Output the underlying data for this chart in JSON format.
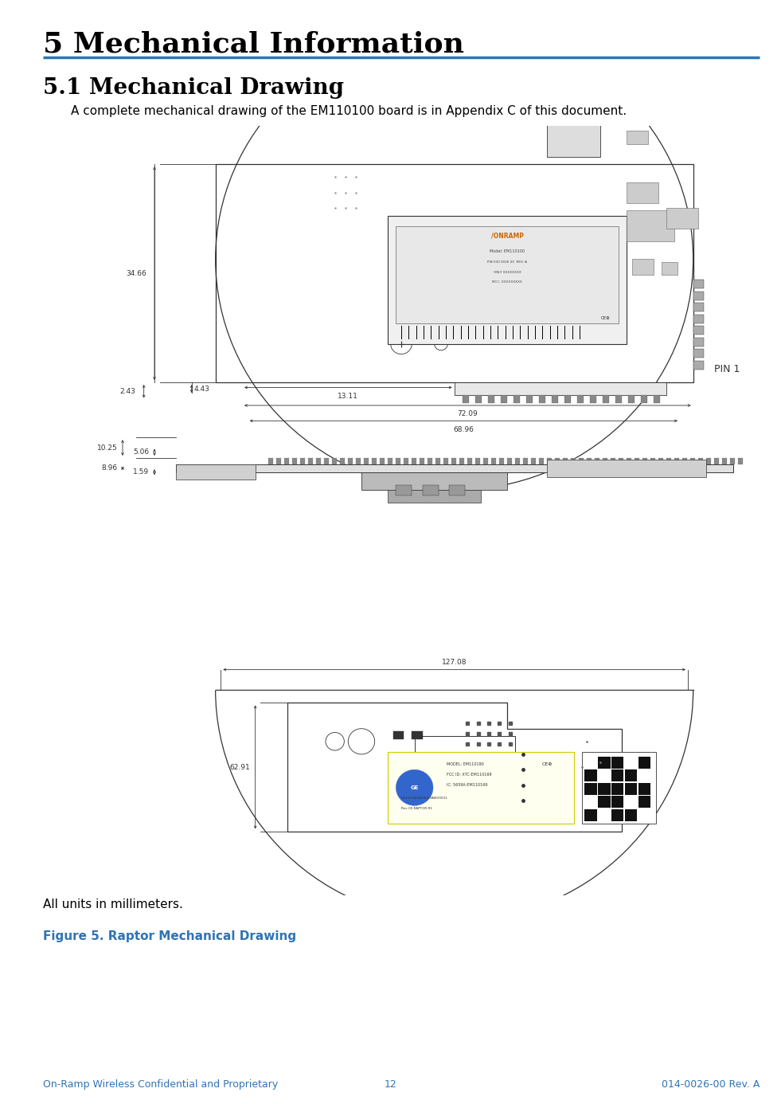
{
  "title": "5 Mechanical Information",
  "subtitle": "5.1 Mechanical Drawing",
  "body_text": "A complete mechanical drawing of the EM110100 board is in Appendix C of this document.",
  "caption_text": "All units in millimeters.",
  "figure_caption": "Figure 5. Raptor Mechanical Drawing",
  "footer_left": "On-Ramp Wireless Confidential and Proprietary",
  "footer_center": "12",
  "footer_right": "014-0026-00 Rev. A",
  "title_color": "#000000",
  "subtitle_color": "#000000",
  "body_color": "#000000",
  "caption_color": "#000000",
  "figure_caption_color": "#2e74b5",
  "footer_color": "#2e74b5",
  "separator_color": "#2e74b5",
  "bg_color": "#ffffff",
  "title_fontsize": 26,
  "subtitle_fontsize": 20,
  "body_fontsize": 11,
  "caption_fontsize": 11,
  "figure_caption_fontsize": 11,
  "footer_fontsize": 9,
  "page_width": 9.81,
  "page_height": 13.86
}
